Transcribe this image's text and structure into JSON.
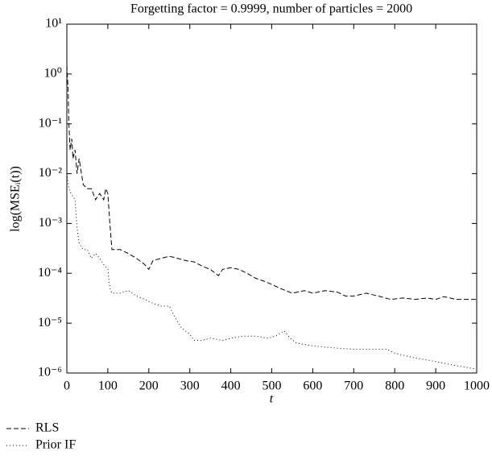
{
  "chart_data": {
    "type": "line",
    "title": "Forgetting factor = 0.9999, number of particles = 2000",
    "xlabel": "t",
    "ylabel": "log(MSEᵢ(t))",
    "log_y": true,
    "legend": "below left",
    "xlim": [
      0,
      1000
    ],
    "xticks": [
      0,
      100,
      200,
      300,
      400,
      500,
      600,
      700,
      800,
      900,
      1000
    ],
    "ylim": [
      1e-06,
      10
    ],
    "yticks": [
      {
        "value": 10,
        "label": "10¹"
      },
      {
        "value": 1,
        "label": "10⁰"
      },
      {
        "value": 0.1,
        "label": "10⁻¹"
      },
      {
        "value": 0.01,
        "label": "10⁻²"
      },
      {
        "value": 0.001,
        "label": "10⁻³"
      },
      {
        "value": 0.0001,
        "label": "10⁻⁴"
      },
      {
        "value": 1e-05,
        "label": "10⁻⁵"
      },
      {
        "value": 1e-06,
        "label": "10⁻⁶"
      }
    ],
    "series": [
      {
        "name": "RLS",
        "color": "#000000",
        "style": "dashed",
        "x": [
          0,
          3,
          5,
          8,
          12,
          15,
          20,
          25,
          30,
          40,
          50,
          60,
          70,
          80,
          90,
          95,
          100,
          105,
          110,
          130,
          150,
          170,
          190,
          200,
          210,
          230,
          250,
          270,
          290,
          310,
          330,
          350,
          370,
          380,
          400,
          420,
          440,
          460,
          480,
          500,
          520,
          550,
          580,
          600,
          630,
          660,
          680,
          700,
          730,
          760,
          790,
          820,
          850,
          880,
          900,
          920,
          950,
          980,
          1000
        ],
        "values": [
          1.5,
          0.5,
          0.1,
          0.03,
          0.05,
          0.02,
          0.03,
          0.01,
          0.02,
          0.006,
          0.005,
          0.005,
          0.003,
          0.004,
          0.003,
          0.005,
          0.004,
          0.001,
          0.0003,
          0.0003,
          0.00025,
          0.0002,
          0.00015,
          0.00012,
          0.00018,
          0.0002,
          0.00022,
          0.0002,
          0.00018,
          0.00017,
          0.00014,
          0.00012,
          9e-05,
          0.00012,
          0.00013,
          0.00012,
          0.0001,
          8e-05,
          7e-05,
          6e-05,
          5e-05,
          4e-05,
          4.5e-05,
          4e-05,
          4.5e-05,
          4.2e-05,
          3.5e-05,
          3.5e-05,
          4e-05,
          3.5e-05,
          3e-05,
          3.2e-05,
          3e-05,
          3.2e-05,
          3e-05,
          3.4e-05,
          3e-05,
          3e-05,
          3e-05
        ]
      },
      {
        "name": "Prior IF",
        "color": "#000000",
        "style": "dotted",
        "x": [
          0,
          5,
          10,
          20,
          25,
          30,
          40,
          50,
          60,
          70,
          80,
          90,
          100,
          105,
          110,
          130,
          150,
          170,
          190,
          210,
          230,
          250,
          260,
          280,
          300,
          310,
          330,
          350,
          380,
          400,
          430,
          460,
          490,
          510,
          530,
          545,
          560,
          600,
          650,
          700,
          750,
          780,
          800,
          850,
          900,
          950,
          1000
        ],
        "values": [
          0.01,
          0.005,
          0.004,
          0.003,
          0.0008,
          0.0004,
          0.0003,
          0.0003,
          0.0002,
          0.00025,
          0.0002,
          0.00015,
          0.00012,
          5e-05,
          4e-05,
          4e-05,
          4.5e-05,
          3.5e-05,
          3e-05,
          2.5e-05,
          2.2e-05,
          2.2e-05,
          1.5e-05,
          8e-06,
          6e-06,
          4.5e-06,
          4.5e-06,
          5e-06,
          4.5e-06,
          5e-06,
          5.5e-06,
          5.5e-06,
          5e-06,
          5.5e-06,
          7e-06,
          5e-06,
          4e-06,
          3.5e-06,
          3.2e-06,
          3e-06,
          3e-06,
          3e-06,
          2.5e-06,
          2e-06,
          1.7e-06,
          1.4e-06,
          1.2e-06
        ]
      }
    ]
  }
}
